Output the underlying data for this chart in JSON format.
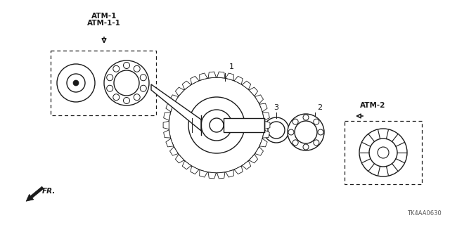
{
  "bg_color": "#ffffff",
  "line_color": "#1a1a1a",
  "part_number": "TK4AA0630",
  "labels": {
    "atm1": "ATM-1",
    "atm11": "ATM-1-1",
    "atm2": "ATM-2",
    "part1": "1",
    "part2": "2",
    "part3": "3",
    "fr": "FR."
  },
  "figsize": [
    6.4,
    3.2
  ],
  "dpi": 100
}
